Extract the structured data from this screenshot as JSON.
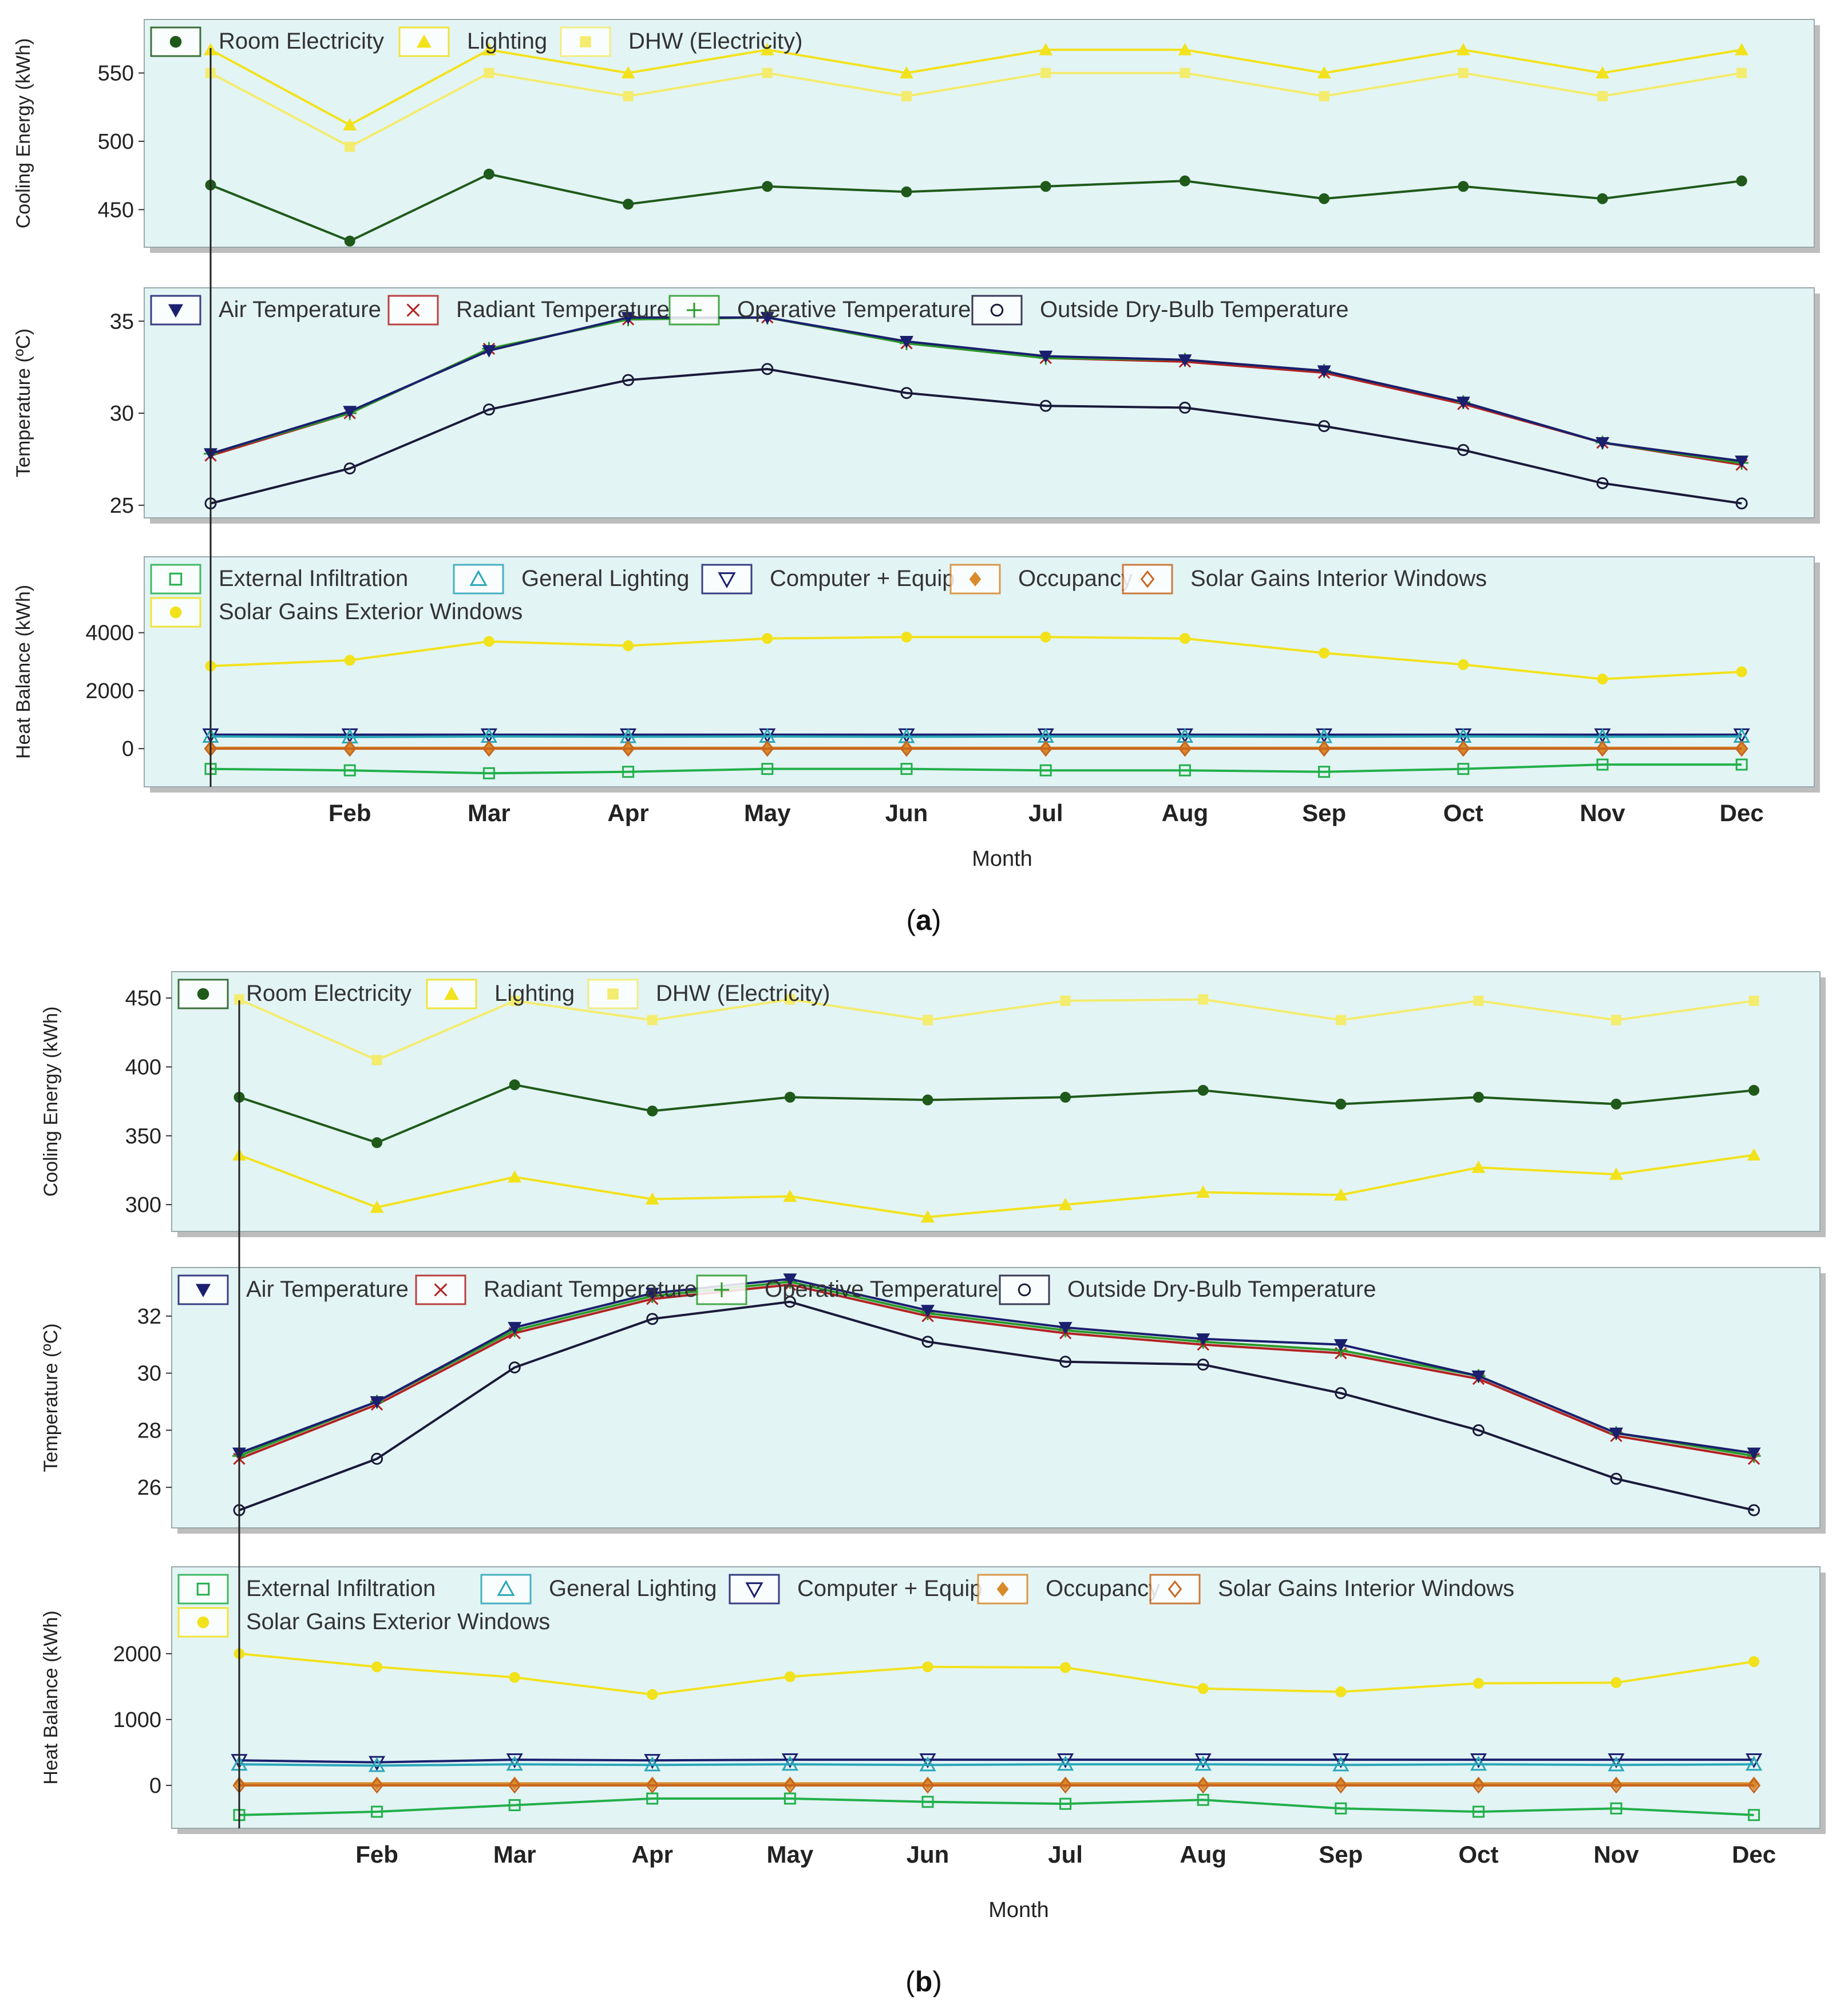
{
  "colors": {
    "panel_bg": "#e3f4f5",
    "room_electricity": "#1f5a1a",
    "lighting": "#f2e21c",
    "dhw": "#f4ec6e",
    "air_temperature": "#1a1f6e",
    "radiant_temperature": "#b22222",
    "operative_temperature": "#2a9a2a",
    "outside_dry_bulb": "#1a1a3a",
    "external_infiltration": "#22b04a",
    "general_lighting": "#2aa6b8",
    "computer_equip": "#1a1f6e",
    "occupancy": "#d98a2a",
    "solar_interior": "#c8661e",
    "solar_exterior": "#f2e21c"
  },
  "x_ticks": [
    "Feb",
    "Mar",
    "Apr",
    "May",
    "Jun",
    "Jul",
    "Aug",
    "Sep",
    "Oct",
    "Nov",
    "Dec"
  ],
  "chart_data": [
    {
      "id": "a",
      "caption_label": "a",
      "xlabel": "Month",
      "panels": [
        {
          "type": "line",
          "ylabel": "Cooling Energy (kWh)",
          "ylim": [
            425,
            585
          ],
          "yticks": [
            450,
            500,
            550
          ],
          "legend": [
            {
              "key": "room_electricity",
              "label": "Room Electricity",
              "marker": "circle"
            },
            {
              "key": "lighting",
              "label": "Lighting",
              "marker": "triangle-up"
            },
            {
              "key": "dhw",
              "label": "DHW (Electricity)",
              "marker": "square"
            }
          ],
          "series": [
            {
              "key": "room_electricity",
              "name": "Room Electricity",
              "values": [
                468,
                427,
                476,
                454,
                467,
                463,
                467,
                471,
                458,
                467,
                458,
                471
              ]
            },
            {
              "key": "lighting",
              "name": "Lighting",
              "values": [
                567,
                512,
                567,
                550,
                567,
                550,
                567,
                567,
                550,
                567,
                550,
                567
              ]
            },
            {
              "key": "dhw",
              "name": "DHW (Electricity)",
              "values": [
                550,
                496,
                550,
                533,
                550,
                533,
                550,
                550,
                533,
                550,
                533,
                550
              ]
            }
          ]
        },
        {
          "type": "line",
          "ylabel": "Temperature (ºC)",
          "ylim": [
            24.5,
            36.5
          ],
          "yticks": [
            25,
            30,
            35
          ],
          "legend": [
            {
              "key": "air_temperature",
              "label": "Air Temperature",
              "marker": "triangle-down-filled"
            },
            {
              "key": "radiant_temperature",
              "label": "Radiant Temperature",
              "marker": "x"
            },
            {
              "key": "operative_temperature",
              "label": "Operative Temperature",
              "marker": "plus"
            },
            {
              "key": "outside_dry_bulb",
              "label": "Outside Dry-Bulb Temperature",
              "marker": "circle-open"
            }
          ],
          "series": [
            {
              "key": "outside_dry_bulb",
              "name": "Outside Dry-Bulb Temperature",
              "values": [
                25.1,
                27.0,
                30.2,
                31.8,
                32.4,
                31.1,
                30.4,
                30.3,
                29.3,
                28.0,
                26.2,
                25.1
              ]
            },
            {
              "key": "radiant_temperature",
              "name": "Radiant Temperature",
              "values": [
                27.7,
                30.0,
                33.5,
                35.1,
                35.2,
                33.8,
                33.0,
                32.8,
                32.2,
                30.5,
                28.4,
                27.2
              ]
            },
            {
              "key": "operative_temperature",
              "name": "Operative Temperature",
              "values": [
                27.8,
                30.0,
                33.5,
                35.1,
                35.2,
                33.8,
                33.0,
                32.9,
                32.3,
                30.6,
                28.4,
                27.3
              ]
            },
            {
              "key": "air_temperature",
              "name": "Air Temperature",
              "values": [
                27.8,
                30.1,
                33.4,
                35.2,
                35.2,
                33.9,
                33.1,
                32.9,
                32.3,
                30.6,
                28.4,
                27.4
              ]
            }
          ]
        },
        {
          "type": "line",
          "ylabel": "Heat Balance (kWh)",
          "ylim": [
            -1200,
            5000
          ],
          "yticks": [
            0,
            2000,
            4000
          ],
          "legend": [
            {
              "key": "external_infiltration",
              "label": "External Infiltration",
              "marker": "square-open"
            },
            {
              "key": "general_lighting",
              "label": "General Lighting",
              "marker": "triangle-up-open"
            },
            {
              "key": "computer_equip",
              "label": "Computer + Equip",
              "marker": "triangle-down-open"
            },
            {
              "key": "occupancy",
              "label": "Occupancy",
              "marker": "diamond-filled"
            },
            {
              "key": "solar_interior",
              "label": "Solar Gains Interior Windows",
              "marker": "diamond-open"
            },
            {
              "key": "solar_exterior",
              "label": "Solar Gains Exterior Windows",
              "marker": "circle"
            }
          ],
          "series": [
            {
              "key": "solar_exterior",
              "name": "Solar Gains Exterior Windows",
              "values": [
                2850,
                3050,
                3700,
                3550,
                3800,
                3850,
                3850,
                3800,
                3300,
                2900,
                2400,
                2650
              ]
            },
            {
              "key": "computer_equip",
              "name": "Computer + Equip",
              "values": [
                480,
                480,
                480,
                480,
                480,
                480,
                480,
                480,
                480,
                480,
                480,
                480
              ]
            },
            {
              "key": "general_lighting",
              "name": "General Lighting",
              "values": [
                420,
                400,
                420,
                410,
                420,
                410,
                420,
                420,
                410,
                420,
                410,
                420
              ]
            },
            {
              "key": "occupancy",
              "name": "Occupancy",
              "values": [
                30,
                30,
                30,
                30,
                30,
                30,
                30,
                30,
                30,
                30,
                30,
                30
              ]
            },
            {
              "key": "solar_interior",
              "name": "Solar Gains Interior Windows",
              "values": [
                0,
                0,
                0,
                0,
                0,
                0,
                0,
                0,
                0,
                0,
                0,
                0
              ]
            },
            {
              "key": "external_infiltration",
              "name": "External Infiltration",
              "values": [
                -700,
                -750,
                -850,
                -800,
                -700,
                -700,
                -750,
                -750,
                -800,
                -700,
                -550,
                -550
              ]
            }
          ]
        }
      ]
    },
    {
      "id": "b",
      "caption_label": "b",
      "xlabel": "Month",
      "panels": [
        {
          "type": "line",
          "ylabel": "Cooling Energy (kWh)",
          "ylim": [
            283,
            465
          ],
          "yticks": [
            300,
            350,
            400,
            450
          ],
          "legend": [
            {
              "key": "room_electricity",
              "label": "Room Electricity",
              "marker": "circle"
            },
            {
              "key": "lighting",
              "label": "Lighting",
              "marker": "triangle-up"
            },
            {
              "key": "dhw",
              "label": "DHW (Electricity)",
              "marker": "square"
            }
          ],
          "series": [
            {
              "key": "dhw",
              "name": "DHW (Electricity)",
              "values": [
                449,
                405,
                448,
                434,
                449,
                434,
                448,
                449,
                434,
                448,
                434,
                448
              ]
            },
            {
              "key": "lighting",
              "name": "Lighting",
              "values": [
                336,
                298,
                320,
                304,
                306,
                291,
                300,
                309,
                307,
                327,
                322,
                336
              ]
            },
            {
              "key": "room_electricity",
              "name": "Room Electricity",
              "values": [
                378,
                345,
                387,
                368,
                378,
                376,
                378,
                383,
                373,
                378,
                373,
                383
              ]
            }
          ]
        },
        {
          "type": "line",
          "ylabel": "Temperature (ºC)",
          "ylim": [
            24.7,
            33.5
          ],
          "yticks": [
            26,
            28,
            30,
            32
          ],
          "legend": [
            {
              "key": "air_temperature",
              "label": "Air Temperature",
              "marker": "triangle-down-filled"
            },
            {
              "key": "radiant_temperature",
              "label": "Radiant Temperature",
              "marker": "x"
            },
            {
              "key": "operative_temperature",
              "label": "Operative Temperature",
              "marker": "plus"
            },
            {
              "key": "outside_dry_bulb",
              "label": "Outside Dry-Bulb Temperature",
              "marker": "circle-open"
            }
          ],
          "series": [
            {
              "key": "outside_dry_bulb",
              "name": "Outside Dry-Bulb Temperature",
              "values": [
                25.2,
                27.0,
                30.2,
                31.9,
                32.5,
                31.1,
                30.4,
                30.3,
                29.3,
                28.0,
                26.3,
                25.2
              ]
            },
            {
              "key": "radiant_temperature",
              "name": "Radiant Temperature",
              "values": [
                27.0,
                28.9,
                31.4,
                32.6,
                33.1,
                32.0,
                31.4,
                31.0,
                30.7,
                29.8,
                27.8,
                27.0
              ]
            },
            {
              "key": "operative_temperature",
              "name": "Operative Temperature",
              "values": [
                27.1,
                29.0,
                31.5,
                32.7,
                33.2,
                32.1,
                31.5,
                31.1,
                30.8,
                29.9,
                27.9,
                27.1
              ]
            },
            {
              "key": "air_temperature",
              "name": "Air Temperature",
              "values": [
                27.2,
                29.0,
                31.6,
                32.8,
                33.3,
                32.2,
                31.6,
                31.2,
                31.0,
                29.9,
                27.9,
                27.2
              ]
            }
          ]
        },
        {
          "type": "line",
          "ylabel": "Heat Balance (kWh)",
          "ylim": [
            -600,
            2650
          ],
          "yticks": [
            0,
            1000,
            2000
          ],
          "legend": [
            {
              "key": "external_infiltration",
              "label": "External Infiltration",
              "marker": "square-open"
            },
            {
              "key": "general_lighting",
              "label": "General Lighting",
              "marker": "triangle-up-open"
            },
            {
              "key": "computer_equip",
              "label": "Computer + Equip",
              "marker": "triangle-down-open"
            },
            {
              "key": "occupancy",
              "label": "Occupancy",
              "marker": "diamond-filled"
            },
            {
              "key": "solar_interior",
              "label": "Solar Gains Interior Windows",
              "marker": "diamond-open"
            },
            {
              "key": "solar_exterior",
              "label": "Solar Gains Exterior Windows",
              "marker": "circle"
            }
          ],
          "series": [
            {
              "key": "solar_exterior",
              "name": "Solar Gains Exterior Windows",
              "values": [
                2000,
                1800,
                1640,
                1380,
                1650,
                1800,
                1790,
                1470,
                1420,
                1550,
                1560,
                1880
              ]
            },
            {
              "key": "computer_equip",
              "name": "Computer + Equip",
              "values": [
                380,
                350,
                390,
                380,
                390,
                390,
                390,
                390,
                390,
                390,
                390,
                390
              ]
            },
            {
              "key": "general_lighting",
              "name": "General Lighting",
              "values": [
                320,
                300,
                320,
                310,
                320,
                310,
                320,
                320,
                310,
                320,
                310,
                320
              ]
            },
            {
              "key": "occupancy",
              "name": "Occupancy",
              "values": [
                30,
                30,
                30,
                30,
                30,
                30,
                30,
                30,
                30,
                30,
                30,
                30
              ]
            },
            {
              "key": "solar_interior",
              "name": "Solar Gains Interior Windows",
              "values": [
                0,
                0,
                0,
                0,
                0,
                0,
                0,
                0,
                0,
                0,
                0,
                0
              ]
            },
            {
              "key": "external_infiltration",
              "name": "External Infiltration",
              "values": [
                -450,
                -400,
                -300,
                -200,
                -200,
                -250,
                -280,
                -220,
                -350,
                -400,
                -350,
                -450
              ]
            }
          ]
        }
      ]
    }
  ]
}
